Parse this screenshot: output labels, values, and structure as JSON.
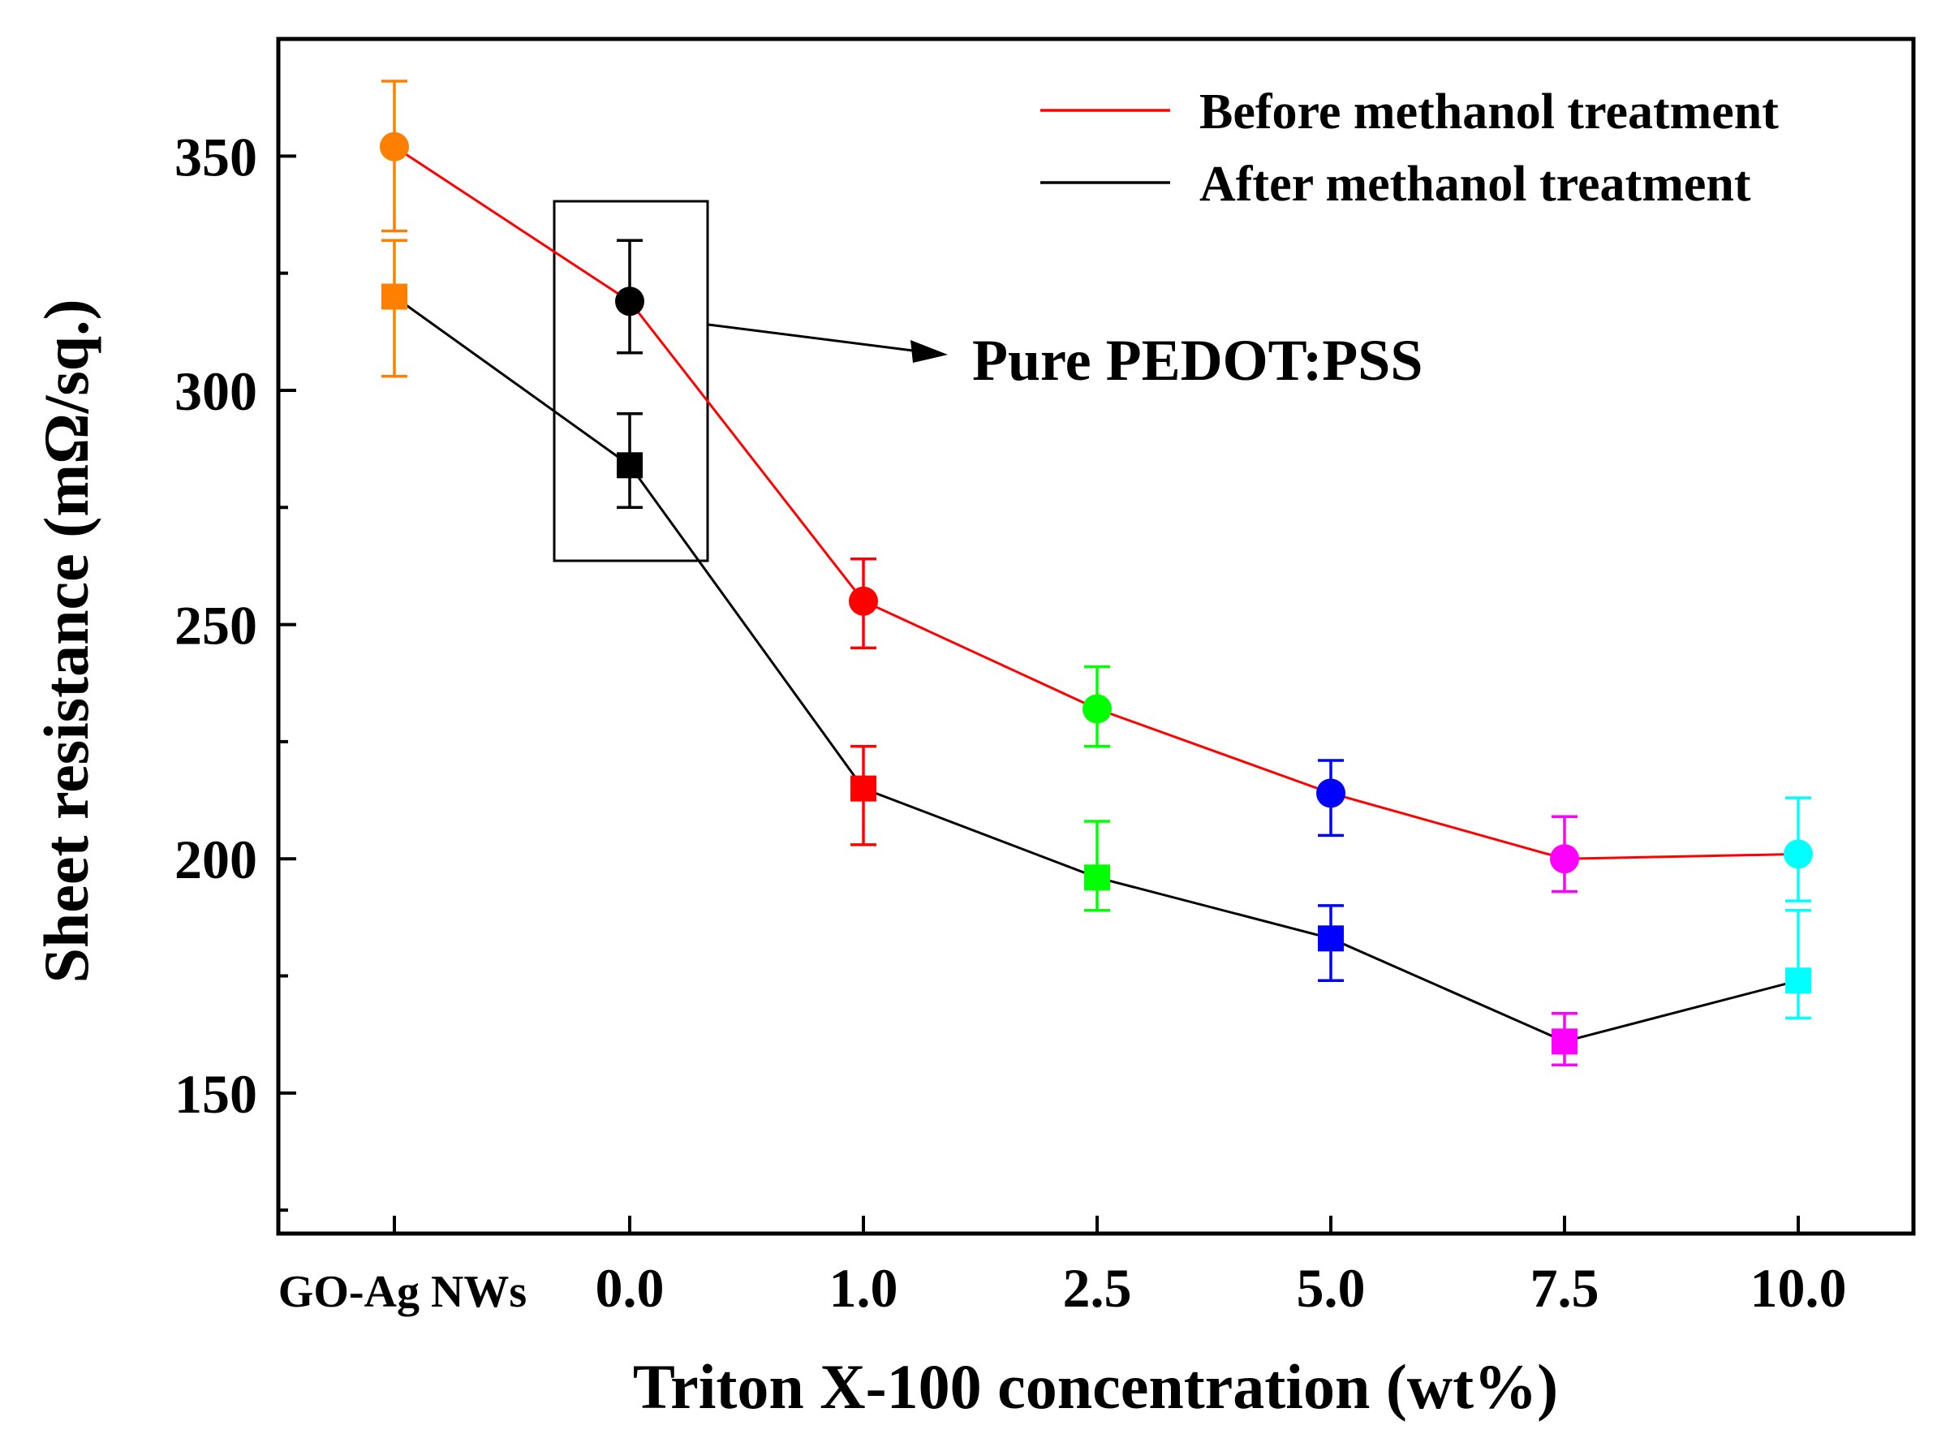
{
  "chart_data": {
    "type": "line",
    "title": "",
    "xlabel": "Triton X-100 concentration (wt%)",
    "ylabel": "Sheet resistance (mΩ/sq.)",
    "categories": [
      "GO-Ag NWs",
      "0.0",
      "1.0",
      "2.5",
      "5.0",
      "7.5",
      "10.0"
    ],
    "ylim": [
      120,
      375
    ],
    "yticks": [
      150,
      200,
      250,
      300,
      350
    ],
    "yticks_labels": [
      "150",
      "200",
      "250",
      "300",
      "350"
    ],
    "grid": false,
    "legend_position": "top-right",
    "point_colors": [
      "#ff8000",
      "#000000",
      "#ff0000",
      "#00ff00",
      "#0000ff",
      "#ff00ff",
      "#00ffff"
    ],
    "series": [
      {
        "name": "Before methanol treatment",
        "line_color": "#ff0000",
        "marker": "circle",
        "values": [
          352,
          319,
          255,
          232,
          214,
          200,
          201
        ],
        "err_low": [
          334,
          308,
          245,
          224,
          205,
          193,
          191
        ],
        "err_high": [
          366,
          332,
          264,
          241,
          221,
          209,
          213
        ]
      },
      {
        "name": "After methanol treatment",
        "line_color": "#000000",
        "marker": "square",
        "values": [
          320,
          284,
          215,
          196,
          183,
          161,
          174
        ],
        "err_low": [
          303,
          275,
          203,
          189,
          174,
          156,
          166
        ],
        "err_high": [
          332,
          295,
          224,
          208,
          190,
          167,
          189
        ]
      }
    ],
    "annotations": [
      {
        "text": "Pure PEDOT:PSS",
        "target_category": "0.0"
      }
    ]
  }
}
